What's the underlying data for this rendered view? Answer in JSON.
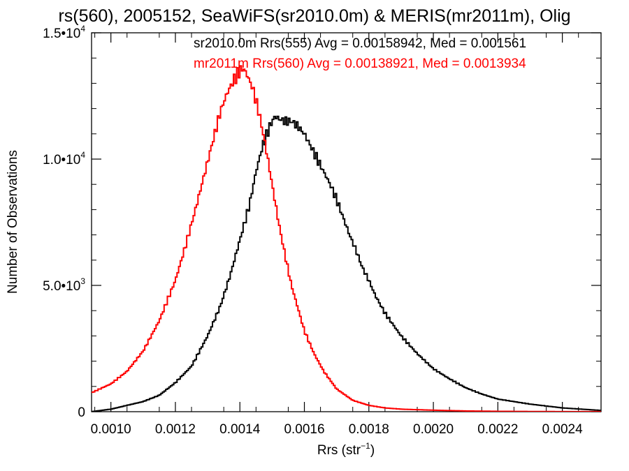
{
  "chart_data": {
    "type": "line",
    "title": "rs(560), 2005152, SeaWiFS(sr2010.0m) & MERIS(mr2011m), Olig",
    "xlabel": "Rrs (str",
    "xlabel_exp": "−1",
    "xlabel_close": ")",
    "ylabel": "Number of Observations",
    "xlim": [
      0.00094,
      0.00252
    ],
    "ylim": [
      0,
      15000
    ],
    "grid": false,
    "legend_placement": "top-right (clipped)",
    "xticks": [
      {
        "value": 0.001,
        "label": "0.0010"
      },
      {
        "value": 0.0012,
        "label": "0.0012"
      },
      {
        "value": 0.0014,
        "label": "0.0014"
      },
      {
        "value": 0.0016,
        "label": "0.0016"
      },
      {
        "value": 0.0018,
        "label": "0.0018"
      },
      {
        "value": 0.002,
        "label": "0.0020"
      },
      {
        "value": 0.0022,
        "label": "0.0022"
      },
      {
        "value": 0.0024,
        "label": "0.0024"
      }
    ],
    "yticks": [
      {
        "value": 0,
        "mantissa": "0",
        "exp": ""
      },
      {
        "value": 5000,
        "mantissa": "5.0•10",
        "exp": "3"
      },
      {
        "value": 10000,
        "mantissa": "1.0•10",
        "exp": "4"
      },
      {
        "value": 15000,
        "mantissa": "1.5•10",
        "exp": "4"
      }
    ],
    "series": [
      {
        "name": "sr2010.0m Rrs(555) Avg = 0.00158942, Med = 0.001561",
        "color": "#000000",
        "x": [
          0.00094,
          0.001,
          0.00105,
          0.0011,
          0.00115,
          0.0012,
          0.00125,
          0.0013,
          0.00134,
          0.00137,
          0.0014,
          0.00143,
          0.00145,
          0.00147,
          0.00149,
          0.0015,
          0.00151,
          0.00152,
          0.00154,
          0.00156,
          0.00158,
          0.0016,
          0.00162,
          0.00164,
          0.00166,
          0.00168,
          0.0017,
          0.00172,
          0.00174,
          0.00176,
          0.00178,
          0.0018,
          0.00182,
          0.00185,
          0.0019,
          0.00195,
          0.002,
          0.00205,
          0.0021,
          0.00215,
          0.0022,
          0.0023,
          0.0024,
          0.00252
        ],
        "y": [
          0,
          100,
          250,
          400,
          650,
          1150,
          1800,
          3000,
          4200,
          5400,
          6800,
          8200,
          9500,
          10500,
          11200,
          11500,
          11700,
          11600,
          11500,
          11500,
          11300,
          11000,
          10500,
          10000,
          9500,
          9000,
          8400,
          7700,
          7000,
          6400,
          5700,
          5200,
          4600,
          3900,
          3000,
          2300,
          1700,
          1300,
          950,
          700,
          500,
          300,
          150,
          50
        ]
      },
      {
        "name": "mr2011m Rrs(560) Avg = 0.00138921, Med = 0.0013934",
        "color": "#ff0000",
        "x": [
          0.00094,
          0.001,
          0.00105,
          0.0011,
          0.00115,
          0.0012,
          0.00123,
          0.00126,
          0.00129,
          0.00132,
          0.00134,
          0.00136,
          0.00138,
          0.0014,
          0.00141,
          0.00142,
          0.00144,
          0.00146,
          0.00148,
          0.0015,
          0.00152,
          0.00154,
          0.00156,
          0.00158,
          0.0016,
          0.00163,
          0.00166,
          0.0017,
          0.00175,
          0.0018,
          0.00185,
          0.0019,
          0.002,
          0.0021,
          0.0022,
          0.0023,
          0.0024,
          0.00252
        ],
        "y": [
          750,
          1100,
          1600,
          2400,
          3600,
          5200,
          6500,
          7900,
          9400,
          10900,
          11900,
          12600,
          13100,
          13500,
          13600,
          13400,
          12800,
          11800,
          10500,
          9000,
          7500,
          6200,
          5000,
          4100,
          3200,
          2300,
          1600,
          900,
          450,
          250,
          150,
          100,
          60,
          30,
          15,
          8,
          4,
          2
        ]
      }
    ]
  }
}
